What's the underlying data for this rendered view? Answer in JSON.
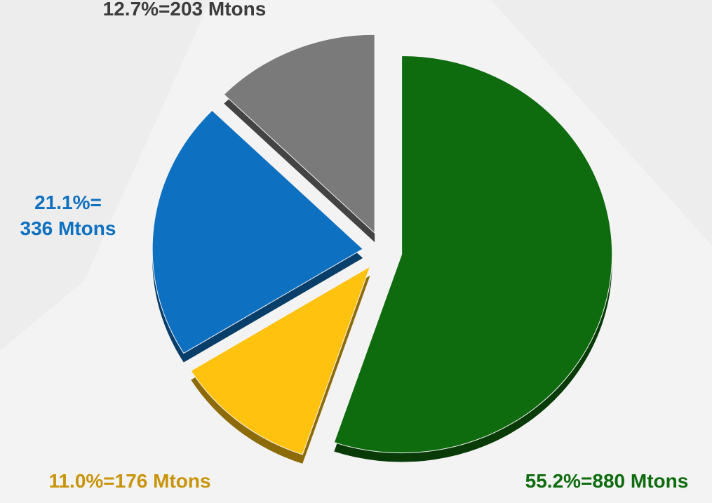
{
  "chart_data": {
    "type": "pie",
    "values": [
      55.2,
      11.0,
      21.1,
      12.7
    ],
    "value_labels": [
      "55.2%=880 Mtons",
      "11.0%=176 Mtons",
      "21.1%=\n336 Mtons",
      "12.7%=203 Mtons"
    ],
    "colors": [
      "#0e6b0e",
      "#ffc20e",
      "#0e70c0",
      "#7a7a7a"
    ],
    "label_colors": [
      "#0e6b0e",
      "#c9940a",
      "#0e70c0",
      "#3c3c3c"
    ],
    "exploded": true
  }
}
